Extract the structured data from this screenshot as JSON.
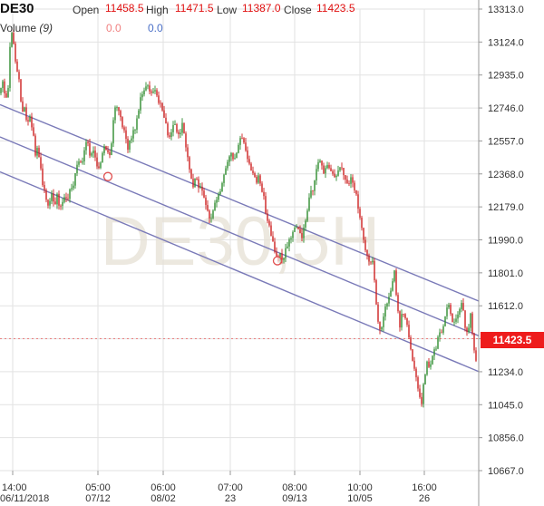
{
  "header": {
    "symbol": "DE30",
    "open_label": "Open",
    "open_value": "11458.5",
    "high_label": "High",
    "high_value": "11471.5",
    "low_label": "Low",
    "low_value": "11387.0",
    "close_label": "Close",
    "close_value": "11423.5",
    "volume_label": "Volume",
    "volume_param": "(9)",
    "volume_value_a": "0.0",
    "volume_value_b": "0.0"
  },
  "watermark": "DE30,5H",
  "last_price": "11423.5",
  "colors": {
    "up": "#2e8b2e",
    "down": "#cc2020",
    "channel": "#7a7ab8",
    "grid": "#e2e2e2",
    "last_price_bg": "#ee1c1c",
    "marker": "#e05050"
  },
  "chart_data": {
    "type": "candlestick",
    "timeframe": "5H",
    "symbol": "DE30",
    "y_ticks": [
      "13313.0",
      "13124.0",
      "12935.0",
      "12746.0",
      "12557.0",
      "12368.0",
      "12179.0",
      "11990.0",
      "11801.0",
      "11612.0",
      "11423.0",
      "11234.0",
      "11045.0",
      "10856.0",
      "10667.0"
    ],
    "ylim": [
      10667.0,
      13313.0
    ],
    "x_ticks": [
      {
        "time": "14:00",
        "date": "06/11/2018"
      },
      {
        "time": "05:00",
        "date": "07/12"
      },
      {
        "time": "06:00",
        "date": "08/02"
      },
      {
        "time": "07:00",
        "date": "23"
      },
      {
        "time": "08:00",
        "date": "09/13"
      },
      {
        "time": "10:00",
        "date": "10/05"
      },
      {
        "time": "16:00",
        "date": "26"
      }
    ],
    "close_path": [
      [
        0,
        12830
      ],
      [
        3,
        12900
      ],
      [
        6,
        12780
      ],
      [
        9,
        12860
      ],
      [
        12,
        13210
      ],
      [
        15,
        13120
      ],
      [
        18,
        12970
      ],
      [
        21,
        12900
      ],
      [
        24,
        12720
      ],
      [
        27,
        12760
      ],
      [
        30,
        12650
      ],
      [
        33,
        12700
      ],
      [
        36,
        12620
      ],
      [
        39,
        12480
      ],
      [
        42,
        12520
      ],
      [
        45,
        12390
      ],
      [
        48,
        12280
      ],
      [
        51,
        12220
      ],
      [
        54,
        12170
      ],
      [
        57,
        12260
      ],
      [
        60,
        12180
      ],
      [
        63,
        12240
      ],
      [
        66,
        12150
      ],
      [
        69,
        12210
      ],
      [
        72,
        12250
      ],
      [
        75,
        12230
      ],
      [
        78,
        12290
      ],
      [
        81,
        12300
      ],
      [
        84,
        12400
      ],
      [
        87,
        12450
      ],
      [
        90,
        12420
      ],
      [
        93,
        12500
      ],
      [
        96,
        12560
      ],
      [
        99,
        12480
      ],
      [
        102,
        12510
      ],
      [
        105,
        12450
      ],
      [
        108,
        12380
      ],
      [
        111,
        12430
      ],
      [
        114,
        12510
      ],
      [
        117,
        12520
      ],
      [
        120,
        12460
      ],
      [
        123,
        12540
      ],
      [
        126,
        12740
      ],
      [
        129,
        12760
      ],
      [
        132,
        12720
      ],
      [
        135,
        12650
      ],
      [
        138,
        12600
      ],
      [
        141,
        12520
      ],
      [
        144,
        12560
      ],
      [
        147,
        12620
      ],
      [
        150,
        12640
      ],
      [
        153,
        12740
      ],
      [
        156,
        12820
      ],
      [
        159,
        12860
      ],
      [
        162,
        12880
      ],
      [
        165,
        12840
      ],
      [
        168,
        12810
      ],
      [
        171,
        12860
      ],
      [
        174,
        12800
      ],
      [
        177,
        12760
      ],
      [
        180,
        12720
      ],
      [
        183,
        12650
      ],
      [
        186,
        12570
      ],
      [
        189,
        12600
      ],
      [
        192,
        12660
      ],
      [
        195,
        12600
      ],
      [
        198,
        12580
      ],
      [
        201,
        12660
      ],
      [
        204,
        12560
      ],
      [
        207,
        12460
      ],
      [
        210,
        12380
      ],
      [
        213,
        12300
      ],
      [
        216,
        12360
      ],
      [
        219,
        12300
      ],
      [
        222,
        12280
      ],
      [
        225,
        12230
      ],
      [
        228,
        12170
      ],
      [
        231,
        12110
      ],
      [
        234,
        12130
      ],
      [
        237,
        12210
      ],
      [
        240,
        12220
      ],
      [
        243,
        12280
      ],
      [
        246,
        12330
      ],
      [
        249,
        12410
      ],
      [
        252,
        12470
      ],
      [
        255,
        12490
      ],
      [
        258,
        12440
      ],
      [
        261,
        12490
      ],
      [
        264,
        12560
      ],
      [
        267,
        12580
      ],
      [
        270,
        12540
      ],
      [
        273,
        12460
      ],
      [
        276,
        12410
      ],
      [
        279,
        12370
      ],
      [
        282,
        12320
      ],
      [
        285,
        12350
      ],
      [
        288,
        12290
      ],
      [
        291,
        12230
      ],
      [
        294,
        12110
      ],
      [
        297,
        12080
      ],
      [
        300,
        11990
      ],
      [
        303,
        11920
      ],
      [
        306,
        11870
      ],
      [
        309,
        11900
      ],
      [
        312,
        11880
      ],
      [
        315,
        11930
      ],
      [
        318,
        11970
      ],
      [
        321,
        12000
      ],
      [
        324,
        12070
      ],
      [
        327,
        12050
      ],
      [
        330,
        12030
      ],
      [
        333,
        12010
      ],
      [
        336,
        12080
      ],
      [
        339,
        12170
      ],
      [
        342,
        12250
      ],
      [
        345,
        12280
      ],
      [
        348,
        12370
      ],
      [
        351,
        12430
      ],
      [
        354,
        12440
      ],
      [
        357,
        12380
      ],
      [
        360,
        12420
      ],
      [
        363,
        12400
      ],
      [
        366,
        12380
      ],
      [
        369,
        12340
      ],
      [
        372,
        12360
      ],
      [
        375,
        12410
      ],
      [
        378,
        12390
      ],
      [
        381,
        12340
      ],
      [
        384,
        12290
      ],
      [
        387,
        12360
      ],
      [
        390,
        12300
      ],
      [
        393,
        12250
      ],
      [
        396,
        12140
      ],
      [
        399,
        12060
      ],
      [
        402,
        11960
      ],
      [
        405,
        11890
      ],
      [
        408,
        11850
      ],
      [
        411,
        11860
      ],
      [
        414,
        11690
      ],
      [
        417,
        11510
      ],
      [
        420,
        11460
      ],
      [
        423,
        11560
      ],
      [
        426,
        11620
      ],
      [
        429,
        11650
      ],
      [
        432,
        11730
      ],
      [
        435,
        11800
      ],
      [
        438,
        11610
      ],
      [
        441,
        11500
      ],
      [
        444,
        11580
      ],
      [
        447,
        11540
      ],
      [
        450,
        11480
      ],
      [
        453,
        11360
      ],
      [
        456,
        11280
      ],
      [
        459,
        11210
      ],
      [
        462,
        11120
      ],
      [
        465,
        11060
      ],
      [
        468,
        11190
      ],
      [
        471,
        11290
      ],
      [
        474,
        11250
      ],
      [
        477,
        11330
      ],
      [
        480,
        11360
      ],
      [
        483,
        11420
      ],
      [
        486,
        11460
      ],
      [
        489,
        11490
      ],
      [
        492,
        11580
      ],
      [
        495,
        11620
      ],
      [
        498,
        11540
      ],
      [
        501,
        11510
      ],
      [
        504,
        11560
      ],
      [
        507,
        11590
      ],
      [
        510,
        11630
      ],
      [
        513,
        11490
      ],
      [
        516,
        11450
      ],
      [
        519,
        11560
      ],
      [
        522,
        11380
      ],
      [
        525,
        11300
      ],
      [
        528,
        11430
      ]
    ],
    "channel_lines": [
      {
        "name": "upper",
        "start": [
          0,
          12765
        ],
        "end": [
          528,
          11639
        ]
      },
      {
        "name": "middle",
        "start": [
          0,
          12580
        ],
        "end": [
          528,
          11440
        ]
      },
      {
        "name": "lower",
        "start": [
          0,
          12380
        ],
        "end": [
          528,
          11235
        ]
      }
    ],
    "markers": [
      [
        119,
        12353
      ],
      [
        306,
        11870
      ]
    ],
    "last_price": 11423.5
  }
}
